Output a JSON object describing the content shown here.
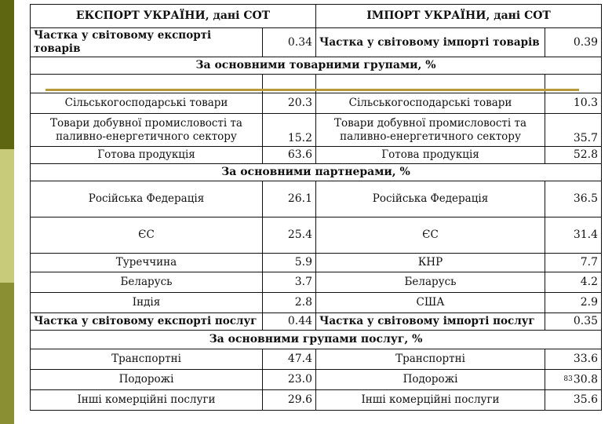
{
  "header": {
    "export_title": "ЕКСПОРТ УКРАЇНИ, дані СОТ",
    "import_title": "ІМПОРТ УКРАЇНИ, дані СОТ"
  },
  "goods_share": {
    "export_label": "Частка у світовому експорті товарів",
    "export_value": "0.34",
    "import_label": "Частка у світовому імпорті товарів",
    "import_value": "0.39"
  },
  "product_groups": {
    "title": "За основними товарними групами, %",
    "rows": [
      {
        "export_label": "Сільськогосподарські товари",
        "export_value": "20.3",
        "import_label": "Сільськогосподарські товари",
        "import_value": "10.3"
      },
      {
        "export_label": "Товари добувної промисловості та паливно-енергетичного сектору",
        "export_value": "15.2",
        "import_label": "Товари добувної промисловості та паливно-енергетичного сектору",
        "import_value": "35.7"
      },
      {
        "export_label": "Готова продукція",
        "export_value": "63.6",
        "import_label": "Готова продукція",
        "import_value": "52.8"
      }
    ]
  },
  "partners": {
    "title": "За основними партнерами, %",
    "rows": [
      {
        "export_label": "Російська Федерація",
        "export_value": "26.1",
        "import_label": "Російська Федерація",
        "import_value": "36.5"
      },
      {
        "export_label": "ЄС",
        "export_value": "25.4",
        "import_label": "ЄС",
        "import_value": "31.4"
      },
      {
        "export_label": "Туреччина",
        "export_value": "5.9",
        "import_label": "КНР",
        "import_value": "7.7"
      },
      {
        "export_label": "Беларусь",
        "export_value": "3.7",
        "import_label": "Беларусь",
        "import_value": "4.2"
      },
      {
        "export_label": "Індія",
        "export_value": "2.8",
        "import_label": "США",
        "import_value": "2.9"
      }
    ]
  },
  "services_share": {
    "export_label": "Частка у світовому експорті послуг",
    "export_value": "0.44",
    "import_label": "Частка у світовому імпорті послуг",
    "import_value": "0.35"
  },
  "service_groups": {
    "title": "За основними групами послуг, %",
    "rows": [
      {
        "export_label": "Транспортні",
        "export_value": "47.4",
        "import_label": "Транспортні",
        "import_value": "33.6"
      },
      {
        "export_label": "Подорожі",
        "export_value": "23.0",
        "import_label": "Подорожі",
        "import_value": "30.8"
      },
      {
        "export_label": "Інші комерційні послуги",
        "export_value": "29.6",
        "import_label": "Інші комерційні послуги",
        "import_value": "35.6"
      }
    ]
  },
  "page_number": "83"
}
